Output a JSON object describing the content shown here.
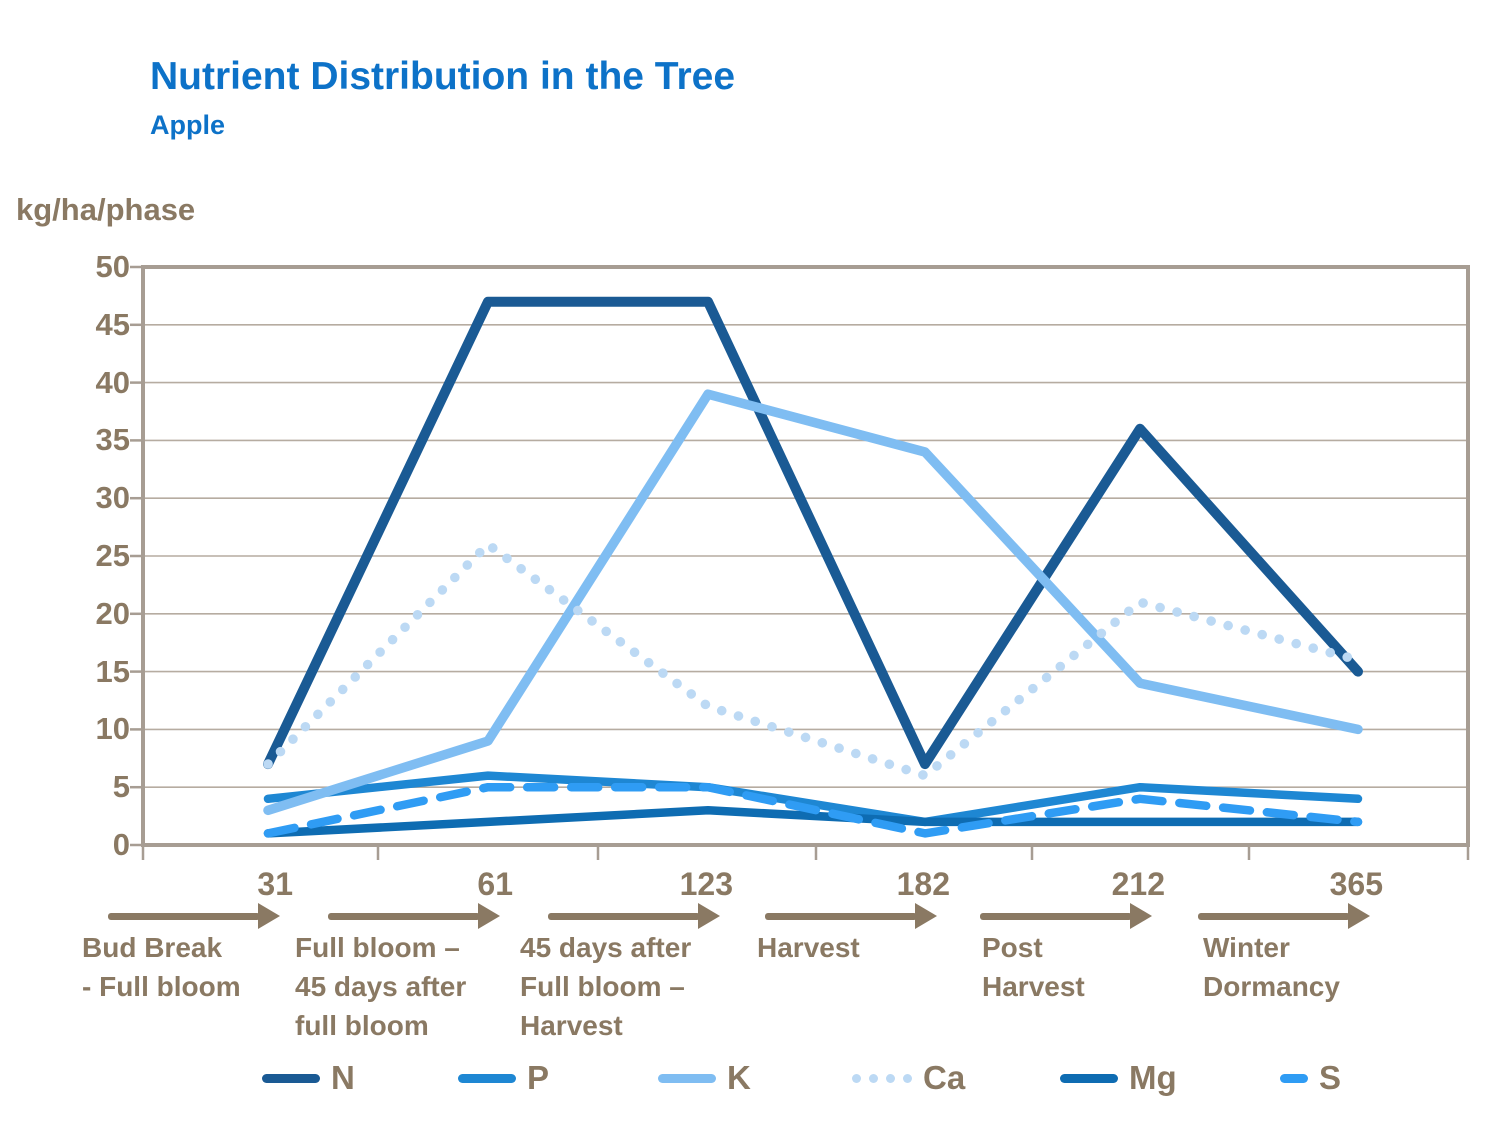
{
  "chart_data": {
    "type": "line",
    "title": "Nutrient Distribution in the Tree",
    "subtitle": "Apple",
    "ylabel": "kg/ha/phase",
    "xlabel": "",
    "ylim": [
      0,
      50
    ],
    "ytick_step": 5,
    "grid": "horizontal",
    "legend_position": "bottom",
    "x": [
      31,
      61,
      123,
      182,
      212,
      365
    ],
    "x_phase_labels": [
      "Bud Break - Full bloom",
      "Full bloom – 45 days after full bloom",
      "45 days after Full bloom – Harvest",
      "Harvest",
      "Post Harvest",
      "Winter Dormancy"
    ],
    "series": [
      {
        "name": "N",
        "values": [
          7,
          47,
          47,
          7,
          36,
          15
        ],
        "color": "#1a5a94",
        "style": "solid"
      },
      {
        "name": "P",
        "values": [
          4,
          6,
          5,
          2,
          5,
          4
        ],
        "color": "#1e87d3",
        "style": "solid"
      },
      {
        "name": "K",
        "values": [
          3,
          9,
          39,
          34,
          14,
          10
        ],
        "color": "#7fbdf2",
        "style": "solid"
      },
      {
        "name": "Ca",
        "values": [
          7,
          26,
          12,
          6,
          21,
          16
        ],
        "color": "#bcd9f4",
        "style": "dotted"
      },
      {
        "name": "Mg",
        "values": [
          1,
          2,
          3,
          2,
          2,
          2
        ],
        "color": "#0e6cb2",
        "style": "solid"
      },
      {
        "name": "S",
        "values": [
          1,
          5,
          5,
          1,
          4,
          2
        ],
        "color": "#2f9cf4",
        "style": "dashed"
      }
    ]
  },
  "phases": [
    {
      "day": "31",
      "lines": [
        "Bud Break",
        "- Full bloom"
      ]
    },
    {
      "day": "61",
      "lines": [
        "Full bloom –",
        "45 days after",
        "full bloom"
      ]
    },
    {
      "day": "123",
      "lines": [
        "45 days after",
        "Full bloom –",
        "Harvest"
      ]
    },
    {
      "day": "182",
      "lines": [
        "Harvest"
      ]
    },
    {
      "day": "212",
      "lines": [
        "Post",
        "Harvest"
      ]
    },
    {
      "day": "365",
      "lines": [
        "Winter",
        "Dormancy"
      ]
    }
  ],
  "colors": {
    "title_blue": "#0d72c8",
    "axis_text_brown": "#8a7963",
    "gridline": "#b6aca1",
    "frame": "#a79d93"
  }
}
